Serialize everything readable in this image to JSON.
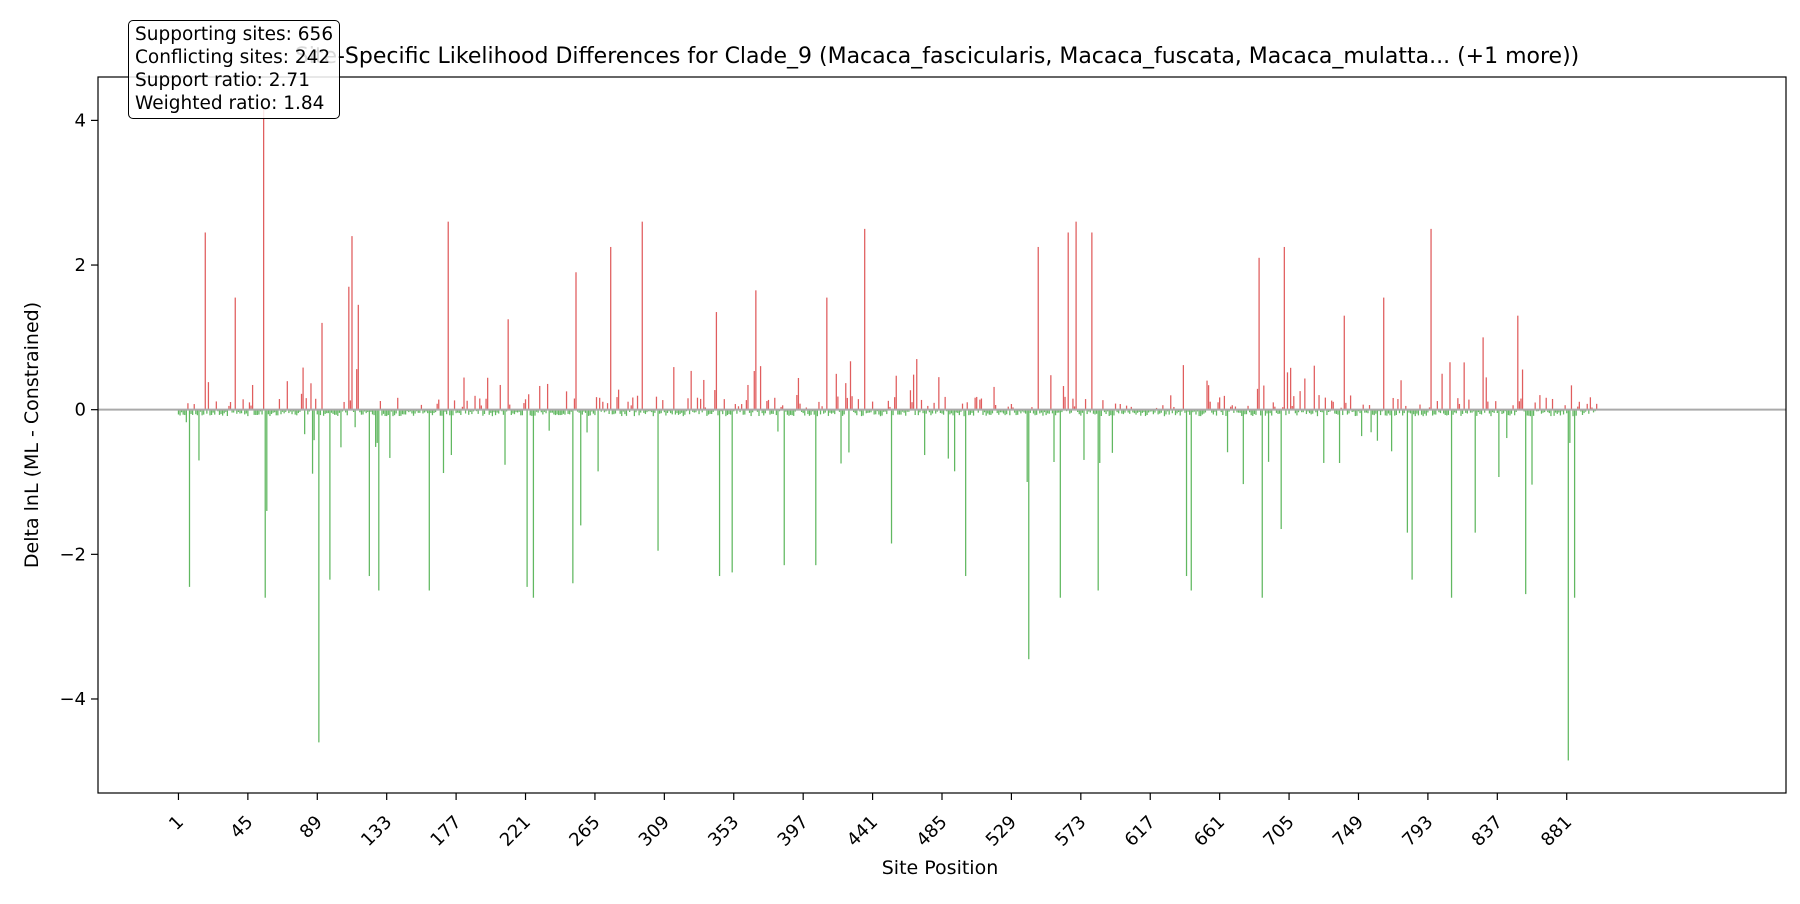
{
  "chart_data": {
    "type": "bar",
    "title": "Site-Specific Likelihood Differences for Clade_9 (Macaca_fascicularis, Macaca_fuscata, Macaca_mulatta... (+1 more))",
    "xlabel": "Site Position",
    "ylabel": "Delta lnL (ML - Constrained)",
    "xlim": [
      -50,
      1020
    ],
    "ylim": [
      -5.3,
      4.6
    ],
    "x_ticks": [
      1,
      45,
      89,
      133,
      177,
      221,
      265,
      309,
      353,
      397,
      441,
      485,
      529,
      573,
      617,
      661,
      705,
      749,
      793,
      837,
      881
    ],
    "y_ticks": [
      -4,
      -2,
      0,
      2,
      4
    ],
    "y_tick_labels": [
      "−4",
      "−2",
      "0",
      "2",
      "4"
    ],
    "n_sites": 900,
    "colors": {
      "supporting": "#2ca02c",
      "conflicting": "#d62728",
      "zero_line": "#aaaaaa"
    },
    "grid": false,
    "stats": [
      "Supporting sites: 656",
      "Conflicting sites: 242",
      "Support ratio: 2.71",
      "Weighted ratio: 1.84"
    ],
    "prominent_sites": [
      {
        "x": 8,
        "y": -2.45
      },
      {
        "x": 18,
        "y": 2.45
      },
      {
        "x": 37,
        "y": 1.55
      },
      {
        "x": 55,
        "y": 4.2
      },
      {
        "x": 56,
        "y": -2.6
      },
      {
        "x": 57,
        "y": -1.4
      },
      {
        "x": 90,
        "y": -4.6
      },
      {
        "x": 92,
        "y": 1.2
      },
      {
        "x": 97,
        "y": -2.35
      },
      {
        "x": 109,
        "y": 1.7
      },
      {
        "x": 111,
        "y": 2.4
      },
      {
        "x": 115,
        "y": 1.45
      },
      {
        "x": 122,
        "y": -2.3
      },
      {
        "x": 128,
        "y": -2.5
      },
      {
        "x": 160,
        "y": -2.5
      },
      {
        "x": 172,
        "y": 2.6
      },
      {
        "x": 210,
        "y": 1.25
      },
      {
        "x": 222,
        "y": -2.45
      },
      {
        "x": 226,
        "y": -2.6
      },
      {
        "x": 251,
        "y": -2.4
      },
      {
        "x": 253,
        "y": 1.9
      },
      {
        "x": 256,
        "y": -1.6
      },
      {
        "x": 275,
        "y": 2.25
      },
      {
        "x": 295,
        "y": 2.6
      },
      {
        "x": 305,
        "y": -1.95
      },
      {
        "x": 342,
        "y": 1.35
      },
      {
        "x": 344,
        "y": -2.3
      },
      {
        "x": 352,
        "y": -2.25
      },
      {
        "x": 367,
        "y": 1.65
      },
      {
        "x": 385,
        "y": -2.15
      },
      {
        "x": 405,
        "y": -2.15
      },
      {
        "x": 412,
        "y": 1.55
      },
      {
        "x": 436,
        "y": 2.5
      },
      {
        "x": 453,
        "y": -1.85
      },
      {
        "x": 469,
        "y": 0.7
      },
      {
        "x": 500,
        "y": -2.3
      },
      {
        "x": 540,
        "y": -3.45
      },
      {
        "x": 546,
        "y": 2.25
      },
      {
        "x": 560,
        "y": -2.6
      },
      {
        "x": 565,
        "y": 2.45
      },
      {
        "x": 570,
        "y": 2.6
      },
      {
        "x": 580,
        "y": 2.45
      },
      {
        "x": 584,
        "y": -2.5
      },
      {
        "x": 640,
        "y": -2.3
      },
      {
        "x": 643,
        "y": -2.5
      },
      {
        "x": 686,
        "y": 2.1
      },
      {
        "x": 688,
        "y": -2.6
      },
      {
        "x": 700,
        "y": -1.65
      },
      {
        "x": 702,
        "y": 2.25
      },
      {
        "x": 740,
        "y": 1.3
      },
      {
        "x": 765,
        "y": 1.55
      },
      {
        "x": 780,
        "y": -1.7
      },
      {
        "x": 783,
        "y": -2.35
      },
      {
        "x": 795,
        "y": 2.5
      },
      {
        "x": 808,
        "y": -2.6
      },
      {
        "x": 823,
        "y": -1.7
      },
      {
        "x": 828,
        "y": 1.0
      },
      {
        "x": 850,
        "y": 1.3
      },
      {
        "x": 855,
        "y": -2.55
      },
      {
        "x": 882,
        "y": -4.85
      },
      {
        "x": 886,
        "y": -2.6
      }
    ]
  }
}
